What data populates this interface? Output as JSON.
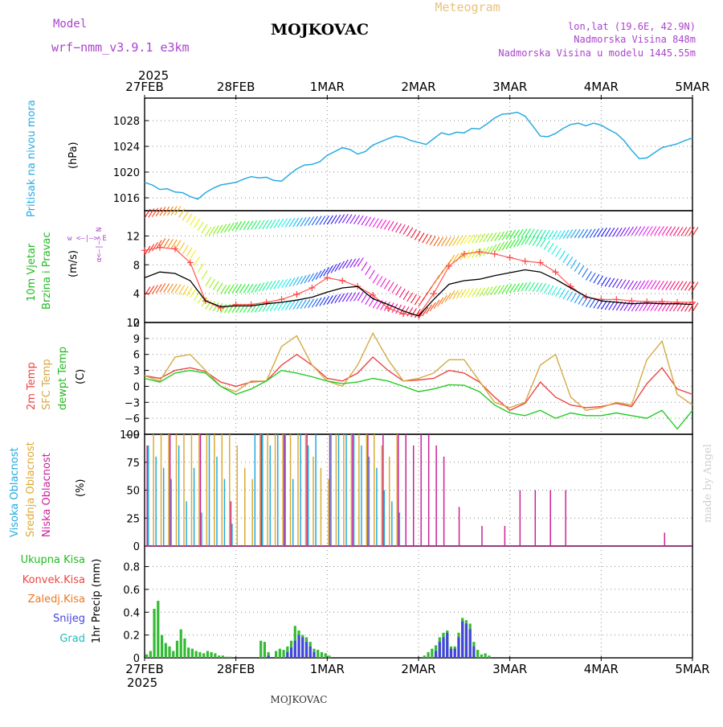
{
  "header": {
    "model_label": "Model",
    "model_name": "wrf−nmm_v3.9.1  e3km",
    "station": "MOJKOVAC",
    "meteogram": "Meteogram",
    "lonlat": "lon,lat (19.6E, 42.9N)",
    "elevation": "Nadmorska Visina 848m",
    "model_elevation": "Nadmorska Visina u modelu 1445.55m",
    "year": "2025",
    "footer_station": "MOJKOVAC",
    "watermark": "made by Angel"
  },
  "colors": {
    "pressure": "#29abe2",
    "temp2m": "#ee4444",
    "sfc": "#d4aa44",
    "dewpt": "#22cc22",
    "wind_label": "#22bb22",
    "wind_dir": "#aa44cc",
    "total": "#33bb33",
    "conv": "#ee4444",
    "freez": "#ee7722",
    "snow": "#4444dd",
    "hail": "#22bbbb",
    "high_cloud": "#22aadd",
    "mid_cloud": "#ddaa33",
    "low_cloud": "#cc2299"
  },
  "chart_data": [
    {
      "type": "line",
      "title": "Pritisak na nivou mora",
      "ylabel": "(hPa)",
      "ylim": [
        1014,
        1031.5
      ],
      "yticks": [
        "1016",
        "1020",
        "1024",
        "1028"
      ],
      "xticks": [
        "27FEB",
        "28FEB",
        "1MAR",
        "2MAR",
        "3MAR",
        "4MAR",
        "5MAR"
      ],
      "xlim_hours": [
        0,
        144
      ],
      "x": [
        0,
        2,
        4,
        6,
        8,
        10,
        12,
        14,
        16,
        18,
        20,
        22,
        24,
        26,
        28,
        30,
        32,
        34,
        36,
        38,
        40,
        42,
        44,
        46,
        48,
        50,
        52,
        54,
        56,
        58,
        60,
        62,
        64,
        66,
        68,
        70,
        72,
        74,
        76,
        78,
        80,
        82,
        84,
        86,
        88,
        90,
        92,
        94,
        96,
        98,
        100,
        102,
        104,
        106,
        108,
        110,
        112,
        114,
        116,
        118,
        120,
        122,
        124,
        126,
        128,
        130,
        132,
        134,
        136,
        138,
        140,
        142,
        144
      ],
      "values": [
        1018.4,
        1018.0,
        1017.3,
        1017.4,
        1016.9,
        1016.8,
        1016.2,
        1015.8,
        1016.8,
        1017.5,
        1018.0,
        1018.2,
        1018.4,
        1018.9,
        1019.3,
        1019.1,
        1019.2,
        1018.7,
        1018.6,
        1019.6,
        1020.5,
        1021.1,
        1021.2,
        1021.6,
        1022.6,
        1023.2,
        1023.8,
        1023.5,
        1022.8,
        1023.2,
        1024.2,
        1024.7,
        1025.2,
        1025.6,
        1025.4,
        1024.9,
        1024.6,
        1024.3,
        1025.2,
        1026.1,
        1025.8,
        1026.2,
        1026.1,
        1026.8,
        1026.7,
        1027.5,
        1028.4,
        1029.0,
        1029.1,
        1029.3,
        1028.7,
        1027.2,
        1025.6,
        1025.5,
        1026.0,
        1026.8,
        1027.4,
        1027.6,
        1027.2,
        1027.6,
        1027.3,
        1026.6,
        1026.0,
        1024.9,
        1023.4,
        1022.1,
        1022.2,
        1023.0,
        1023.8,
        1024.1,
        1024.4,
        1024.9,
        1025.3
      ],
      "series_name": "Pritisak"
    },
    {
      "type": "line",
      "title": "10m Vjetar Brzina i Pravac",
      "ylabel": "(m/s)",
      "ylim": [
        0,
        15.5
      ],
      "yticks": [
        "0",
        "4",
        "8",
        "12"
      ],
      "direction_key": "w <—|—> E",
      "direction_key_v": "α<—|—> N",
      "x": [
        0,
        4,
        8,
        12,
        16,
        20,
        24,
        28,
        32,
        36,
        40,
        44,
        48,
        52,
        56,
        60,
        64,
        68,
        72,
        76,
        80,
        84,
        88,
        92,
        96,
        100,
        104,
        108,
        112,
        116,
        120,
        124,
        128,
        132,
        136,
        140,
        144
      ],
      "values": [
        6.2,
        7.0,
        6.8,
        5.8,
        3.0,
        2.2,
        2.3,
        2.3,
        2.6,
        2.8,
        3.1,
        3.5,
        4.2,
        4.8,
        5.0,
        3.3,
        2.5,
        1.6,
        0.9,
        3.2,
        5.3,
        5.8,
        6.0,
        6.5,
        6.9,
        7.3,
        7.0,
        6.0,
        4.8,
        3.6,
        3.0,
        2.8,
        2.6,
        2.7,
        2.6,
        2.6,
        2.5
      ],
      "gust_values": [
        10.0,
        10.4,
        10.2,
        8.3,
        3.0,
        2.0,
        2.5,
        2.5,
        2.8,
        3.2,
        3.9,
        4.8,
        6.2,
        5.8,
        5.0,
        3.8,
        2.0,
        1.2,
        1.0,
        4.0,
        7.8,
        9.5,
        9.8,
        9.5,
        9.0,
        8.5,
        8.3,
        7.0,
        5.0,
        3.5,
        3.2,
        3.2,
        3.0,
        2.9,
        2.9,
        2.8,
        2.8
      ],
      "upper_band": [
        14.5,
        14.8,
        14.9,
        13.5,
        12.0,
        12.4,
        12.8,
        12.9,
        13.0,
        13.2,
        13.3,
        13.5,
        13.6,
        13.8,
        13.6,
        13.2,
        12.8,
        12.2,
        11.2,
        10.6,
        10.6,
        10.9,
        11.1,
        11.3,
        11.6,
        11.8,
        11.6,
        11.5,
        11.7,
        11.7,
        11.9,
        11.9,
        12.1,
        12.1,
        12.1,
        12.0,
        12.0
      ]
    },
    {
      "type": "line",
      "title": "2m Temp / SFC Temp / dewpt Temp",
      "ylabel": "(C)",
      "ylim": [
        -9,
        12
      ],
      "yticks": [
        "−9",
        "−6",
        "−3",
        "0",
        "3",
        "6",
        "9",
        "12"
      ],
      "x": [
        0,
        4,
        8,
        12,
        16,
        20,
        24,
        28,
        32,
        36,
        40,
        44,
        48,
        52,
        56,
        60,
        64,
        68,
        72,
        76,
        80,
        84,
        88,
        92,
        96,
        100,
        104,
        108,
        112,
        116,
        120,
        124,
        128,
        132,
        136,
        140,
        144
      ],
      "series": [
        {
          "name": "2m Temp",
          "values": [
            2.0,
            1.5,
            3.0,
            3.5,
            2.8,
            0.8,
            0.0,
            0.8,
            1.0,
            4.0,
            6.0,
            4.0,
            1.5,
            1.0,
            2.5,
            5.5,
            3.0,
            1.0,
            1.2,
            1.5,
            3.0,
            2.5,
            0.8,
            -2.0,
            -4.5,
            -3.2,
            0.8,
            -2.0,
            -3.5,
            -4.0,
            -3.8,
            -3.2,
            -3.8,
            0.5,
            3.5,
            -0.5,
            -1.5
          ]
        },
        {
          "name": "SFC Temp",
          "values": [
            2.0,
            1.0,
            5.5,
            6.0,
            3.0,
            0.0,
            -1.0,
            1.0,
            1.0,
            7.5,
            9.5,
            4.0,
            1.0,
            0.0,
            4.0,
            10.0,
            5.0,
            1.0,
            1.5,
            2.5,
            5.0,
            5.0,
            1.0,
            -3.0,
            -4.0,
            -3.0,
            4.0,
            6.0,
            -2.0,
            -4.5,
            -4.0,
            -3.0,
            -3.5,
            5.0,
            8.5,
            -1.5,
            -3.5
          ]
        },
        {
          "name": "dewpt Temp",
          "values": [
            1.5,
            0.8,
            2.5,
            3.0,
            2.5,
            0.0,
            -1.5,
            -0.5,
            1.0,
            3.0,
            2.5,
            1.8,
            1.0,
            0.5,
            0.8,
            1.5,
            1.0,
            0.0,
            -1.0,
            -0.5,
            0.3,
            0.2,
            -1.0,
            -3.5,
            -5.0,
            -5.5,
            -4.5,
            -6.0,
            -5.0,
            -5.5,
            -5.5,
            -5.0,
            -5.5,
            -6.0,
            -4.5,
            -8.0,
            -4.5
          ]
        }
      ]
    },
    {
      "type": "bar",
      "title": "Visoka / Srednja / Niska Oblacnost",
      "ylabel": "(%)",
      "ylim": [
        0,
        100
      ],
      "yticks": [
        "0",
        "25",
        "50",
        "75",
        "100"
      ],
      "series": [
        {
          "name": "Visoka Oblacnost",
          "x": [
            1,
            3,
            5,
            7,
            9,
            11,
            13,
            15,
            17,
            19,
            21,
            23,
            29,
            31,
            33,
            35,
            37,
            39,
            41,
            43,
            45,
            49,
            51,
            53,
            55,
            57,
            59,
            61,
            63,
            65,
            67
          ],
          "values": [
            90,
            80,
            70,
            60,
            90,
            40,
            70,
            30,
            100,
            80,
            60,
            20,
            100,
            100,
            90,
            100,
            100,
            60,
            100,
            90,
            100,
            100,
            100,
            100,
            100,
            90,
            80,
            70,
            50,
            40,
            30
          ]
        },
        {
          "name": "Srednja Oblacnost",
          "x": [
            2,
            4,
            6,
            8,
            10,
            12,
            14,
            16,
            18,
            20,
            22,
            24,
            26,
            28,
            30,
            32,
            34,
            36,
            38,
            40,
            42,
            44,
            46,
            48,
            50,
            52,
            54,
            56,
            58,
            60,
            62,
            64,
            66
          ],
          "values": [
            100,
            100,
            100,
            100,
            100,
            100,
            100,
            100,
            100,
            100,
            100,
            90,
            70,
            60,
            100,
            100,
            100,
            100,
            100,
            100,
            100,
            80,
            70,
            60,
            100,
            100,
            100,
            100,
            100,
            100,
            90,
            80,
            100
          ]
        },
        {
          "name": "Niska Oblacnost",
          "x": [
            0,
            6,
            14,
            22,
            30,
            36,
            42,
            48,
            54,
            58,
            62,
            66,
            68,
            70,
            72,
            74,
            76,
            78,
            82,
            88,
            94,
            98,
            102,
            106,
            110,
            118,
            120,
            122,
            136
          ],
          "values": [
            90,
            100,
            100,
            40,
            100,
            100,
            100,
            100,
            100,
            100,
            100,
            100,
            100,
            90,
            100,
            100,
            90,
            80,
            35,
            18,
            18,
            50,
            50,
            50,
            50,
            0,
            0,
            0,
            12
          ]
        }
      ]
    },
    {
      "type": "bar",
      "title": "1hr Precip",
      "ylabel": "1hr Precip (mm)",
      "ylim": [
        0,
        0.98
      ],
      "yticks": [
        "0",
        "0.2",
        "0.4",
        "0.6",
        "0.8"
      ],
      "series": [
        {
          "name": "Ukupna Kisa",
          "x": [
            0,
            1,
            2,
            3,
            4,
            5,
            6,
            7,
            8,
            9,
            10,
            11,
            12,
            13,
            14,
            15,
            16,
            17,
            18,
            19,
            20,
            21,
            22,
            30,
            31,
            32,
            34,
            35,
            36,
            37,
            38,
            39,
            40,
            41,
            42,
            43,
            44,
            45,
            46,
            47,
            48,
            73,
            74,
            75,
            76,
            77,
            78,
            79,
            80,
            81,
            82,
            83,
            84,
            85,
            86,
            87,
            88,
            89,
            90
          ],
          "values": [
            0.03,
            0.06,
            0.43,
            0.5,
            0.2,
            0.13,
            0.1,
            0.06,
            0.15,
            0.25,
            0.17,
            0.09,
            0.08,
            0.06,
            0.05,
            0.04,
            0.06,
            0.05,
            0.04,
            0.02,
            0.02,
            0.01,
            0.01,
            0.15,
            0.14,
            0.05,
            0.06,
            0.08,
            0.07,
            0.1,
            0.15,
            0.28,
            0.24,
            0.2,
            0.18,
            0.14,
            0.08,
            0.07,
            0.05,
            0.04,
            0.02,
            0.02,
            0.05,
            0.08,
            0.11,
            0.18,
            0.22,
            0.24,
            0.1,
            0.1,
            0.22,
            0.35,
            0.33,
            0.3,
            0.14,
            0.07,
            0.03,
            0.04,
            0.02
          ]
        },
        {
          "name": "Snijeg",
          "x": [
            32,
            37,
            38,
            39,
            40,
            41,
            42,
            43,
            44,
            76,
            77,
            78,
            79,
            80,
            81,
            82,
            83,
            84,
            85,
            86
          ],
          "values": [
            0.02,
            0.05,
            0.09,
            0.15,
            0.2,
            0.18,
            0.14,
            0.1,
            0.05,
            0.06,
            0.14,
            0.18,
            0.22,
            0.08,
            0.08,
            0.18,
            0.32,
            0.3,
            0.25,
            0.1
          ]
        }
      ]
    }
  ],
  "labels": {
    "p1": [
      "Pritisak na nivou mora"
    ],
    "p1_unit": "(hPa)",
    "p2": [
      "10m Vjetar",
      "Brzina i Pravac"
    ],
    "p2_unit": "(m/s)",
    "p3": [
      "2m Temp",
      "SFC Temp",
      "dewpt Temp"
    ],
    "p3_unit": "(C)",
    "p4": [
      "Visoka Oblacnost",
      "Srednja Oblacnost",
      "Niska Oblacnost"
    ],
    "p4_unit": "(%)",
    "p5": [
      "Ukupna Kisa",
      "Konvek.Kisa",
      "Zaledj.Kisa",
      "Snijeg",
      "Grad"
    ],
    "p5_unit": "1hr Precip (mm)"
  }
}
